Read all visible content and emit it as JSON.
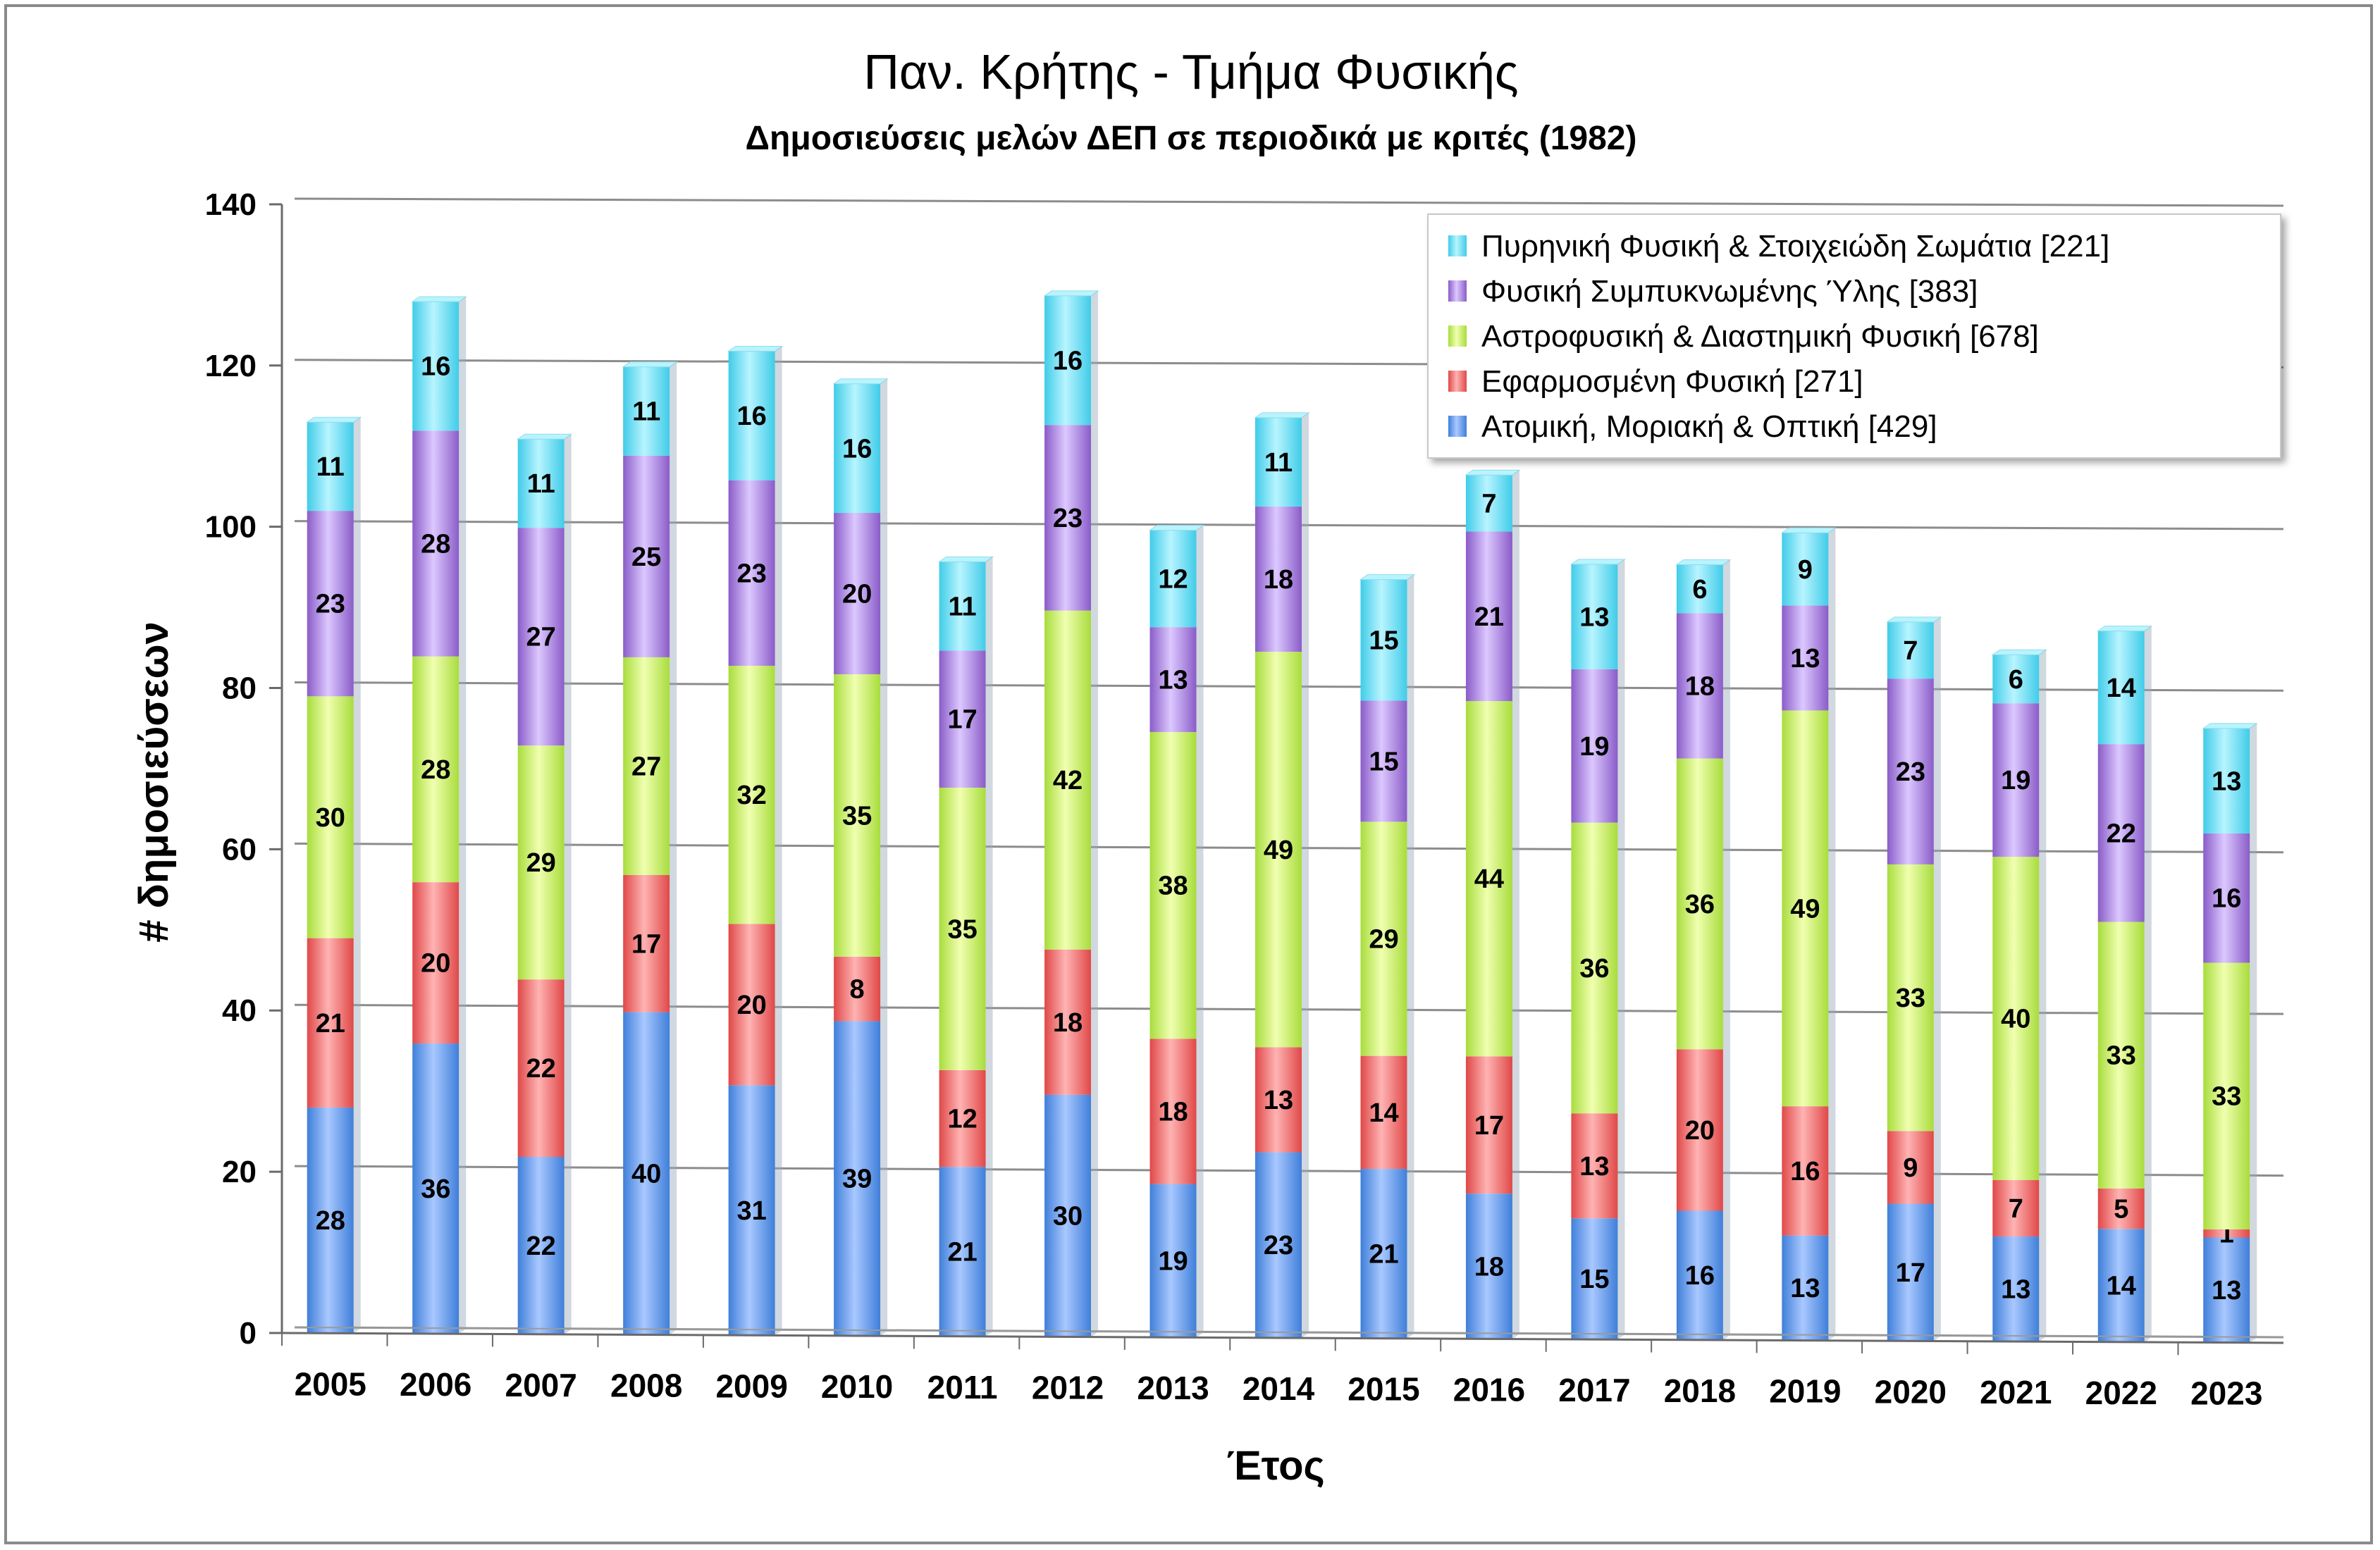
{
  "chart_data": {
    "type": "bar",
    "stacked": true,
    "title": "Παν. Κρήτης - Τμήμα Φυσικής",
    "subtitle": "Δημοσιεύσεις μελών ΔΕΠ σε περιοδικά με κριτές (1982)",
    "xlabel": "Έτος",
    "ylabel": "# δημοσιεύσεων",
    "ylim": [
      0,
      140
    ],
    "yticks": [
      0,
      20,
      40,
      60,
      80,
      100,
      120,
      140
    ],
    "grid": true,
    "legend_position": "top-right",
    "categories": [
      "2005",
      "2006",
      "2007",
      "2008",
      "2009",
      "2010",
      "2011",
      "2012",
      "2013",
      "2014",
      "2015",
      "2016",
      "2017",
      "2018",
      "2019",
      "2020",
      "2021",
      "2022",
      "2023"
    ],
    "series": [
      {
        "name": "Ατομική, Μοριακή & Οπτική [429]",
        "color_light": "#a9c8ff",
        "color_dark": "#3f7fd9",
        "values": [
          28,
          36,
          22,
          40,
          31,
          39,
          21,
          30,
          19,
          23,
          21,
          18,
          15,
          16,
          13,
          17,
          13,
          14,
          13
        ]
      },
      {
        "name": "Εφαρμοσμένη Φυσική [271]",
        "color_light": "#ffb3b3",
        "color_dark": "#e04848",
        "values": [
          21,
          20,
          22,
          17,
          20,
          8,
          12,
          18,
          18,
          13,
          14,
          17,
          13,
          20,
          16,
          9,
          7,
          5,
          1
        ]
      },
      {
        "name": "Αστροφυσική & Διαστημική Φυσική [678]",
        "color_light": "#f0ffb0",
        "color_dark": "#a8dc3c",
        "values": [
          30,
          28,
          29,
          27,
          32,
          35,
          35,
          42,
          38,
          49,
          29,
          44,
          36,
          36,
          49,
          33,
          40,
          33,
          33
        ]
      },
      {
        "name": "Φυσική Συμπυκνωμένης Ύλης [383]",
        "color_light": "#dcc8ff",
        "color_dark": "#8a5cc8",
        "values": [
          23,
          28,
          27,
          25,
          23,
          20,
          17,
          23,
          13,
          18,
          15,
          21,
          19,
          18,
          13,
          23,
          19,
          22,
          16
        ]
      },
      {
        "name": "Πυρηνική Φυσική & Στοιχειώδη Σωμάτια [221]",
        "color_light": "#b8f4ff",
        "color_dark": "#40cce8",
        "values": [
          11,
          16,
          11,
          11,
          16,
          16,
          11,
          16,
          12,
          11,
          15,
          7,
          13,
          6,
          9,
          7,
          6,
          14,
          13
        ]
      }
    ]
  }
}
